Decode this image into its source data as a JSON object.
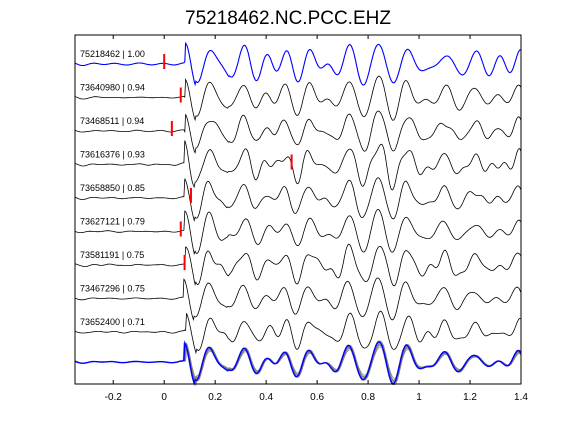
{
  "chart_data": {
    "type": "line",
    "title": "75218462.NC.PCC.EHZ",
    "xlim": [
      -0.35,
      1.4
    ],
    "xticks": [
      -0.2,
      0,
      0.2,
      0.4,
      0.6,
      0.8,
      1,
      1.2,
      1.4
    ],
    "xtick_labels": [
      "-0.2",
      "0",
      "0.2",
      "0.4",
      "0.6",
      "0.8",
      "1",
      "1.2",
      "1.4"
    ],
    "grid": false,
    "series": [
      {
        "name": "75218462 | 1.00",
        "color": "#0000ff",
        "pick": 0.0
      },
      {
        "name": "73640980 | 0.94",
        "color": "#000000",
        "pick": 0.065
      },
      {
        "name": "73468511 | 0.94",
        "color": "#000000",
        "pick": 0.03
      },
      {
        "name": "73616376 | 0.93",
        "color": "#000000",
        "pick": 0.5
      },
      {
        "name": "73658850 | 0.85",
        "color": "#000000",
        "pick": 0.105
      },
      {
        "name": "73627121 | 0.79",
        "color": "#000000",
        "pick": 0.065
      },
      {
        "name": "73581191 | 0.75",
        "color": "#000000",
        "pick": 0.08
      },
      {
        "name": "73467296 | 0.75",
        "color": "#000000",
        "pick": null
      },
      {
        "name": "73652400 | 0.71",
        "color": "#000000",
        "pick": null
      }
    ],
    "stack": {
      "type": "overlay",
      "colors": [
        "#0000ff",
        "#808080"
      ]
    },
    "pick_color": "#ff0000"
  }
}
